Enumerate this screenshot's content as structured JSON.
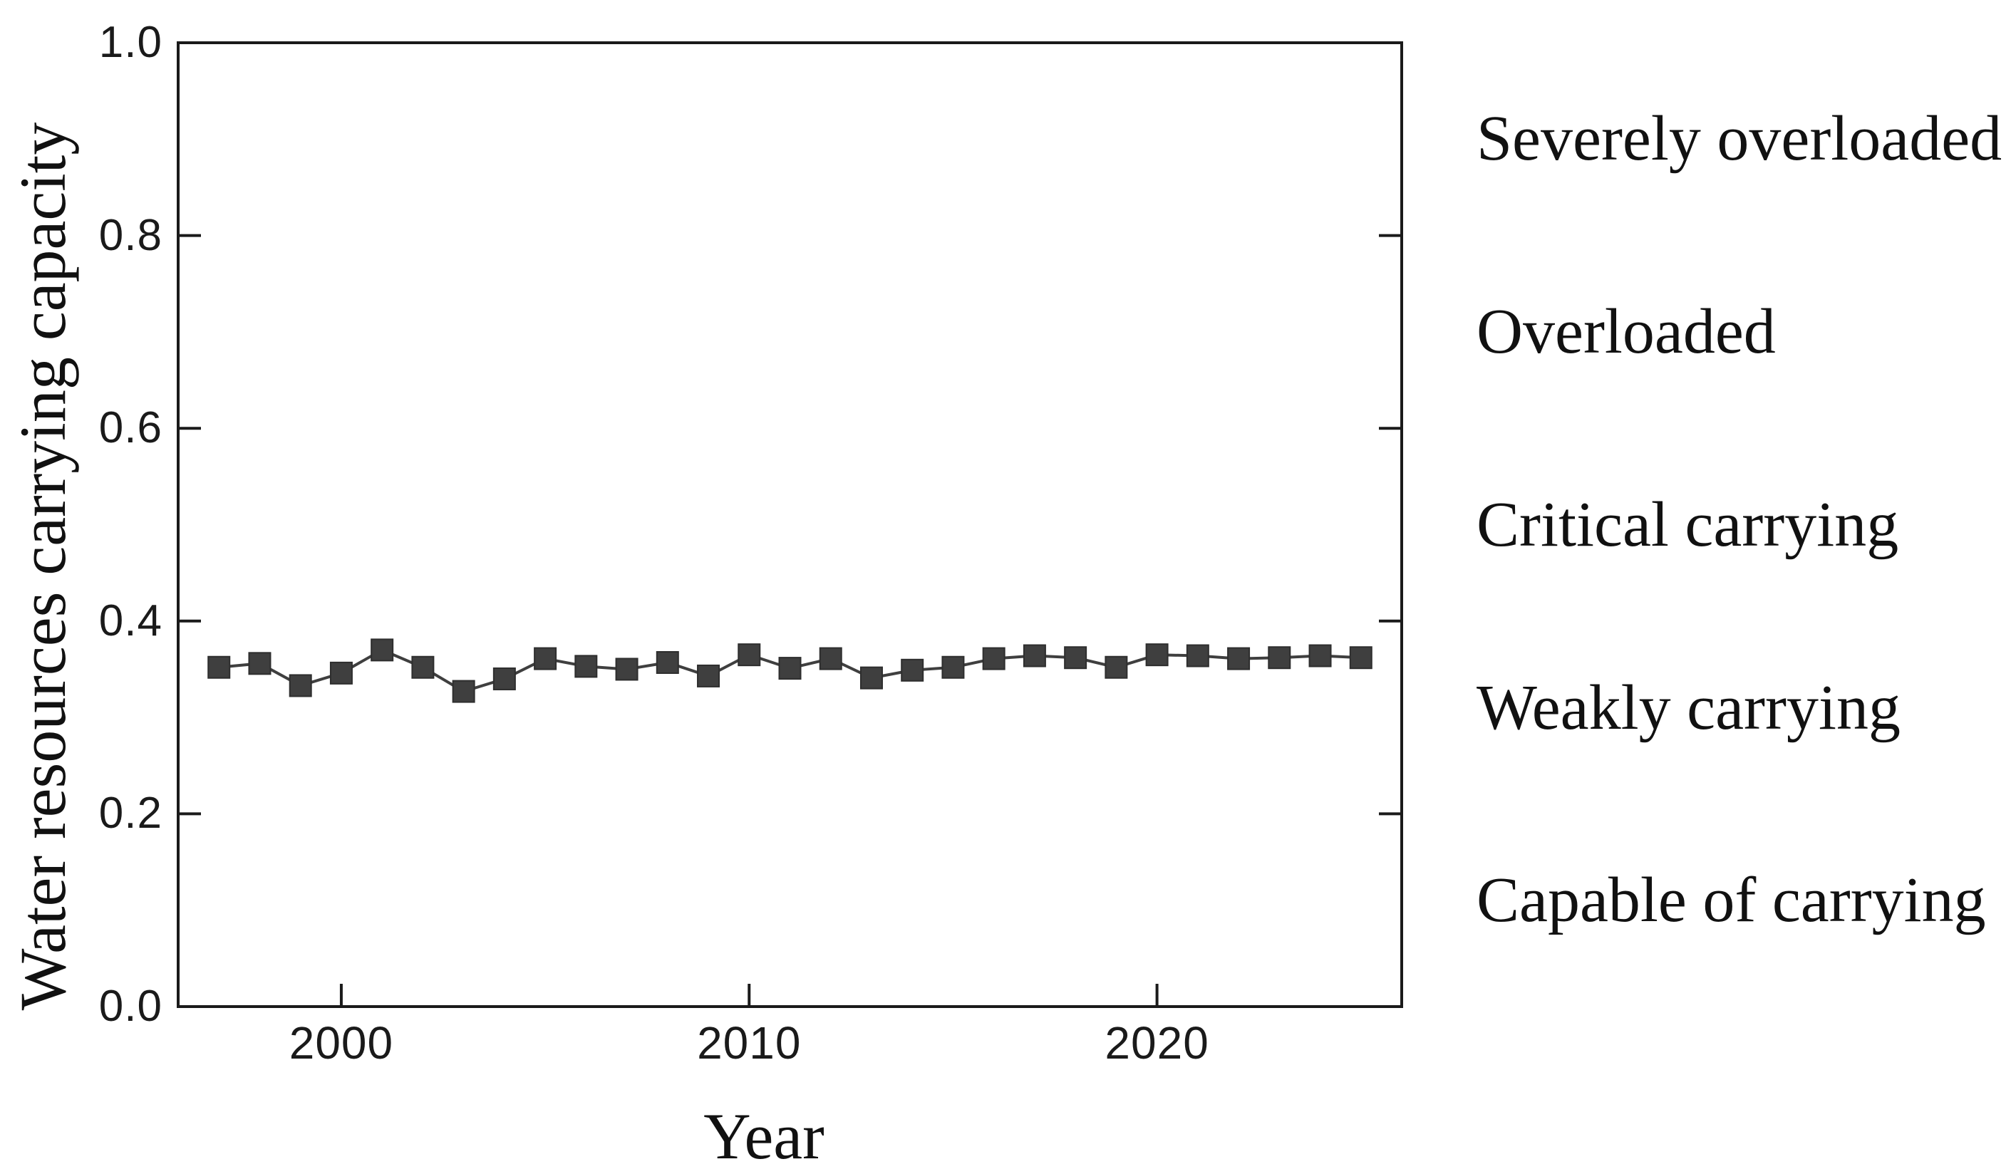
{
  "figure": {
    "background": "#ffffff",
    "axis_color": "#1a1a1a",
    "text_color": "#111111"
  },
  "chart_data": {
    "type": "line",
    "title": "",
    "xlabel": "Year",
    "ylabel": "Water resources carrying capacity",
    "series_name": "Water resources carrying capacity",
    "marker": "square",
    "marker_color": "#3f3f3f",
    "line_color": "#3f3f3f",
    "grid": false,
    "legend_position": "none",
    "xlim": [
      1996,
      2026
    ],
    "ylim": [
      0.0,
      1.0
    ],
    "xticks": [
      2000,
      2010,
      2020
    ],
    "xtick_labels": [
      "2000",
      "2010",
      "2020"
    ],
    "yticks": [
      0.0,
      0.2,
      0.4,
      0.6,
      0.8,
      1.0
    ],
    "ytick_labels": [
      "0.0",
      "0.2",
      "0.4",
      "0.6",
      "0.8",
      "1.0"
    ],
    "x": [
      1997,
      1998,
      1999,
      2000,
      2001,
      2002,
      2003,
      2004,
      2005,
      2006,
      2007,
      2008,
      2009,
      2010,
      2011,
      2012,
      2013,
      2014,
      2015,
      2016,
      2017,
      2018,
      2019,
      2020,
      2021,
      2022,
      2023,
      2024,
      2025
    ],
    "values": [
      0.352,
      0.356,
      0.333,
      0.346,
      0.37,
      0.352,
      0.327,
      0.34,
      0.361,
      0.353,
      0.35,
      0.357,
      0.343,
      0.365,
      0.351,
      0.361,
      0.341,
      0.349,
      0.352,
      0.361,
      0.364,
      0.362,
      0.352,
      0.365,
      0.364,
      0.361,
      0.362,
      0.364,
      0.362
    ],
    "right_band_labels": [
      {
        "label": "Severely overloaded",
        "value": 0.9
      },
      {
        "label": "Overloaded",
        "value": 0.7
      },
      {
        "label": "Critical carrying",
        "value": 0.5
      },
      {
        "label": "Weakly carrying",
        "value": 0.31
      },
      {
        "label": "Capable of carrying",
        "value": 0.11
      }
    ]
  }
}
